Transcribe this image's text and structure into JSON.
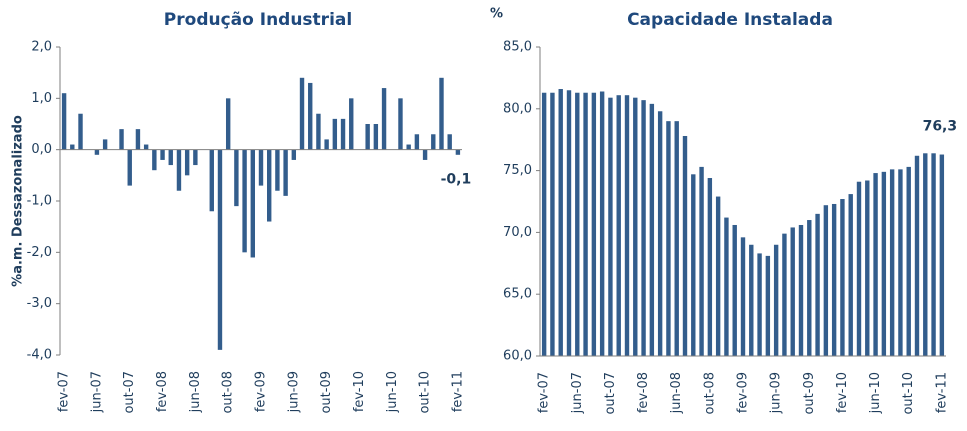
{
  "chart_data": [
    {
      "type": "bar",
      "title": "Produção Industrial",
      "y_label": "%a.m. Dessazonalizado",
      "color": "#335d8c",
      "categories": [
        "fev-07",
        null,
        null,
        null,
        "jun-07",
        null,
        null,
        null,
        "out-07",
        null,
        null,
        null,
        "fev-08",
        null,
        null,
        null,
        "jun-08",
        null,
        null,
        null,
        "out-08",
        null,
        null,
        null,
        "fev-09",
        null,
        null,
        null,
        "jun-09",
        null,
        null,
        null,
        "out-09",
        null,
        null,
        null,
        "fev-10",
        null,
        null,
        null,
        "jun-10",
        null,
        null,
        null,
        "out-10",
        null,
        null,
        null,
        "fev-11"
      ],
      "values": [
        1.1,
        0.1,
        0.7,
        0.0,
        -0.1,
        0.2,
        0.0,
        0.4,
        -0.7,
        0.4,
        0.1,
        -0.4,
        -0.2,
        -0.3,
        -0.8,
        -0.5,
        -0.3,
        0.0,
        -1.2,
        -3.9,
        1.0,
        -1.1,
        -2.0,
        -2.1,
        -0.7,
        -1.4,
        -0.8,
        -0.9,
        -0.2,
        1.4,
        1.3,
        0.7,
        0.2,
        0.6,
        0.6,
        1.0,
        0.0,
        0.5,
        0.5,
        1.2,
        0.0,
        1.0,
        0.1,
        0.3,
        -0.2,
        0.3,
        1.4,
        0.3,
        -0.1
      ],
      "value_labels": [
        null,
        null,
        null,
        null,
        null,
        null,
        null,
        null,
        null,
        null,
        null,
        null,
        null,
        null,
        null,
        null,
        null,
        null,
        null,
        null,
        null,
        null,
        null,
        null,
        null,
        null,
        null,
        null,
        null,
        null,
        null,
        null,
        null,
        null,
        null,
        null,
        null,
        null,
        null,
        null,
        null,
        null,
        null,
        null,
        null,
        null,
        null,
        null,
        "-0,1"
      ],
      "ylim": [
        -4,
        2
      ],
      "yticks": [
        {
          "value": -4,
          "label": "-4,0"
        },
        {
          "value": -3,
          "label": "-3,0"
        },
        {
          "value": -2,
          "label": "-2,0"
        },
        {
          "value": -1,
          "label": "-1,0"
        },
        {
          "value": 0,
          "label": "0,0"
        },
        {
          "value": 1,
          "label": "1,0"
        },
        {
          "value": 2,
          "label": "2,0"
        }
      ]
    },
    {
      "type": "bar",
      "title": "Capacidade Instalada",
      "y_label": "%",
      "color": "#335d8c",
      "categories": [
        "fev-07",
        null,
        null,
        null,
        "jun-07",
        null,
        null,
        null,
        "out-07",
        null,
        null,
        null,
        "fev-08",
        null,
        null,
        null,
        "jun-08",
        null,
        null,
        null,
        "out-08",
        null,
        null,
        null,
        "fev-09",
        null,
        null,
        null,
        "jun-09",
        null,
        null,
        null,
        "out-09",
        null,
        null,
        null,
        "fev-10",
        null,
        null,
        null,
        "jun-10",
        null,
        null,
        null,
        "out-10",
        null,
        null,
        null,
        "fev-11"
      ],
      "values": [
        81.3,
        81.3,
        81.6,
        81.5,
        81.3,
        81.3,
        81.3,
        81.4,
        80.9,
        81.1,
        81.1,
        80.9,
        80.7,
        80.4,
        79.8,
        79.0,
        79.0,
        77.8,
        74.7,
        75.3,
        74.4,
        72.9,
        71.2,
        70.6,
        69.6,
        69.0,
        68.3,
        68.1,
        69.0,
        69.9,
        70.4,
        70.6,
        71.0,
        71.5,
        72.2,
        72.3,
        72.7,
        73.1,
        74.1,
        74.2,
        74.8,
        74.9,
        75.1,
        75.1,
        75.3,
        76.2,
        76.4,
        76.4,
        76.3
      ],
      "value_labels": [
        null,
        null,
        null,
        null,
        null,
        null,
        null,
        null,
        null,
        null,
        null,
        null,
        null,
        null,
        null,
        null,
        null,
        null,
        null,
        null,
        null,
        null,
        null,
        null,
        null,
        null,
        null,
        null,
        null,
        null,
        null,
        null,
        null,
        null,
        null,
        null,
        null,
        null,
        null,
        null,
        null,
        null,
        null,
        null,
        null,
        null,
        null,
        null,
        "76,3"
      ],
      "ylim": [
        60,
        85
      ],
      "yticks": [
        {
          "value": 60,
          "label": "60,0"
        },
        {
          "value": 65,
          "label": "65,0"
        },
        {
          "value": 70,
          "label": "70,0"
        },
        {
          "value": 75,
          "label": "75,0"
        },
        {
          "value": 80,
          "label": "80,0"
        },
        {
          "value": 85,
          "label": "85,0"
        }
      ]
    }
  ]
}
